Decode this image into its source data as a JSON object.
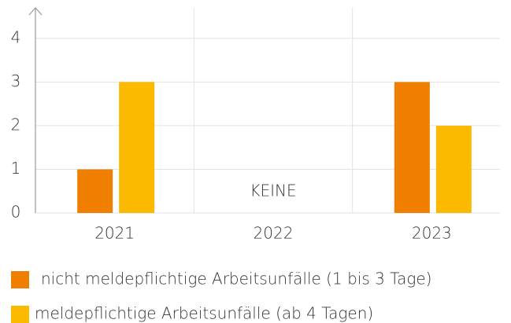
{
  "chart_data": {
    "type": "bar",
    "categories": [
      "2021",
      "2022",
      "2023"
    ],
    "series": [
      {
        "name": "nicht meldepflichtige Arbeitsunfälle (1 bis 3 Tage)",
        "color": "#f07f00",
        "values": [
          1,
          0,
          3
        ]
      },
      {
        "name": "meldepflichtige Arbeitsunfälle (ab 4 Tagen)",
        "color": "#fbb900",
        "values": [
          3,
          0,
          2
        ]
      }
    ],
    "annotations": [
      "KEINE"
    ],
    "ylim": [
      0,
      4.7
    ],
    "yticks": [
      0,
      1,
      2,
      3,
      4
    ],
    "grid": true
  }
}
